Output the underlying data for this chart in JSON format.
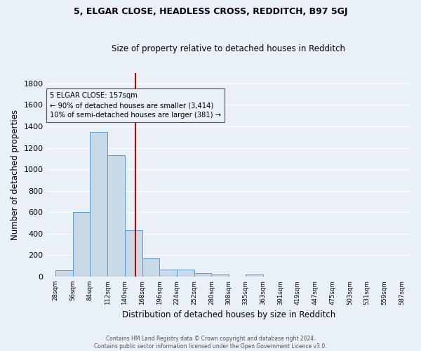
{
  "title1": "5, ELGAR CLOSE, HEADLESS CROSS, REDDITCH, B97 5GJ",
  "title2": "Size of property relative to detached houses in Redditch",
  "xlabel": "Distribution of detached houses by size in Redditch",
  "ylabel": "Number of detached properties",
  "bar_values": [
    60,
    600,
    1350,
    1130,
    430,
    170,
    65,
    65,
    35,
    20,
    0,
    20,
    0,
    0,
    0,
    0,
    0,
    0,
    0,
    0
  ],
  "bar_edges": [
    28,
    56,
    84,
    112,
    140,
    168,
    196,
    224,
    252,
    280,
    308,
    335,
    363,
    391,
    419,
    447,
    475,
    503,
    531,
    559,
    587
  ],
  "bar_color": "#c9d9e8",
  "bar_edgecolor": "#5b9bd5",
  "tick_labels": [
    "28sqm",
    "56sqm",
    "84sqm",
    "112sqm",
    "140sqm",
    "168sqm",
    "196sqm",
    "224sqm",
    "252sqm",
    "280sqm",
    "308sqm",
    "335sqm",
    "363sqm",
    "391sqm",
    "419sqm",
    "447sqm",
    "475sqm",
    "503sqm",
    "531sqm",
    "559sqm",
    "587sqm"
  ],
  "vline_x": 157,
  "vline_color": "#cc0000",
  "ylim": [
    0,
    1900
  ],
  "yticks": [
    0,
    200,
    400,
    600,
    800,
    1000,
    1200,
    1400,
    1600,
    1800
  ],
  "annotation_title": "5 ELGAR CLOSE: 157sqm",
  "annotation_line1": "← 90% of detached houses are smaller (3,414)",
  "annotation_line2": "10% of semi-detached houses are larger (381) →",
  "footnote1": "Contains HM Land Registry data © Crown copyright and database right 2024.",
  "footnote2": "Contains public sector information licensed under the Open Government Licence v3.0.",
  "bg_color": "#eaf0f8",
  "grid_color": "#ffffff"
}
